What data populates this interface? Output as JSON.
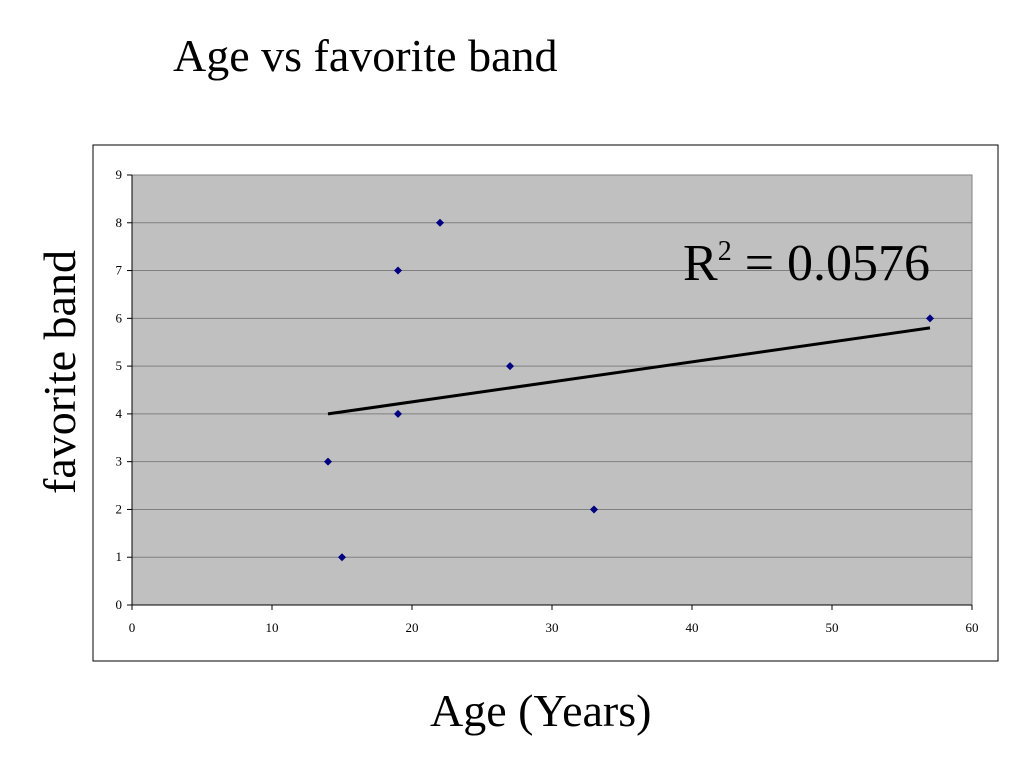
{
  "chart_data": {
    "type": "scatter",
    "title": "Age vs favorite band",
    "xlabel": "Age (Years)",
    "ylabel": "favorite band",
    "xlim": [
      0,
      60
    ],
    "ylim": [
      0,
      9
    ],
    "x_ticks": [
      0,
      10,
      20,
      30,
      40,
      50,
      60
    ],
    "y_ticks": [
      0,
      1,
      2,
      3,
      4,
      5,
      6,
      7,
      8,
      9
    ],
    "grid": true,
    "legend": "none",
    "points": [
      {
        "x": 14,
        "y": 3
      },
      {
        "x": 15,
        "y": 1
      },
      {
        "x": 19,
        "y": 7
      },
      {
        "x": 19,
        "y": 4
      },
      {
        "x": 22,
        "y": 8
      },
      {
        "x": 27,
        "y": 5
      },
      {
        "x": 33,
        "y": 2
      },
      {
        "x": 57,
        "y": 6
      }
    ],
    "trendline": {
      "x": [
        14,
        57
      ],
      "y": [
        4.0,
        5.8
      ]
    },
    "annotation": {
      "base": "R",
      "superscript": "2",
      "rest": " = 0.0576"
    },
    "colors": {
      "plot_background": "#c0c0c0",
      "marker": "#000080",
      "trendline": "#000000",
      "grid": "#808080",
      "frame": "#000000"
    }
  }
}
